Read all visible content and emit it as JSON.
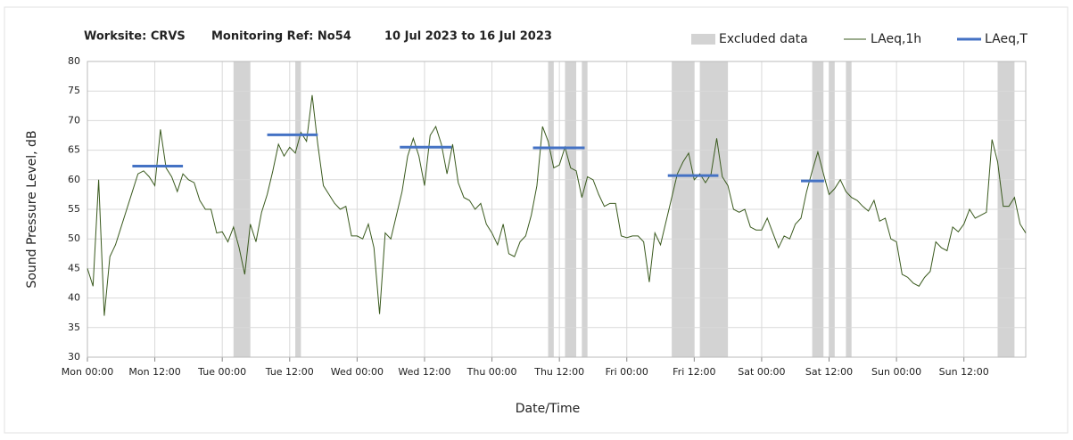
{
  "chart_data": {
    "type": "line",
    "title": [
      "Worksite: CRVS",
      "Monitoring Ref: No54",
      "10 Jul 2023 to 16 Jul 2023"
    ],
    "xlabel": "Date/Time",
    "ylabel": "Sound Pressure Level, dB",
    "xlim": [
      0,
      167
    ],
    "ylim": [
      30,
      80
    ],
    "xticks": [
      {
        "value": 0,
        "label": "Mon 00:00"
      },
      {
        "value": 12,
        "label": "Mon 12:00"
      },
      {
        "value": 24,
        "label": "Tue 00:00"
      },
      {
        "value": 36,
        "label": "Tue 12:00"
      },
      {
        "value": 48,
        "label": "Wed 00:00"
      },
      {
        "value": 60,
        "label": "Wed 12:00"
      },
      {
        "value": 72,
        "label": "Thu 00:00"
      },
      {
        "value": 84,
        "label": "Thu 12:00"
      },
      {
        "value": 96,
        "label": "Fri 00:00"
      },
      {
        "value": 108,
        "label": "Fri 12:00"
      },
      {
        "value": 120,
        "label": "Sat 00:00"
      },
      {
        "value": 132,
        "label": "Sat 12:00"
      },
      {
        "value": 144,
        "label": "Sun 00:00"
      },
      {
        "value": 156,
        "label": "Sun 12:00"
      }
    ],
    "yticks": [
      30,
      35,
      40,
      45,
      50,
      55,
      60,
      65,
      70,
      75,
      80
    ],
    "grid": true,
    "excluded": {
      "name": "Excluded data",
      "color": "#d3d3d3",
      "ranges": [
        [
          26,
          29
        ],
        [
          37,
          38
        ],
        [
          82,
          83
        ],
        [
          85,
          87
        ],
        [
          88,
          89
        ],
        [
          104,
          108
        ],
        [
          109,
          114
        ],
        [
          129,
          131
        ],
        [
          132,
          133
        ],
        [
          135,
          136
        ],
        [
          162,
          165
        ]
      ]
    },
    "periods": {
      "name": "LAeq,T",
      "color": "#4472c4",
      "ranges": [
        [
          8,
          17
        ],
        [
          32,
          41
        ],
        [
          55.6,
          64.8
        ],
        [
          79.3,
          88.5
        ],
        [
          103.3,
          112.3
        ],
        [
          127,
          131.1
        ]
      ],
      "values": [
        62.3,
        67.6,
        65.5,
        65.4,
        60.7,
        59.8
      ]
    },
    "x": [
      0,
      1,
      2,
      3,
      4,
      5,
      6,
      7,
      8,
      9,
      10,
      11,
      12,
      13,
      14,
      15,
      16,
      17,
      18,
      19,
      20,
      21,
      22,
      23,
      24,
      25,
      26,
      27,
      28,
      29,
      30,
      31,
      32,
      33,
      34,
      35,
      36,
      37,
      38,
      39,
      40,
      41,
      42,
      43,
      44,
      45,
      46,
      47,
      48,
      49,
      50,
      51,
      52,
      53,
      54,
      55,
      56,
      57,
      58,
      59,
      60,
      61,
      62,
      63,
      64,
      65,
      66,
      67,
      68,
      69,
      70,
      71,
      72,
      73,
      74,
      75,
      76,
      77,
      78,
      79,
      80,
      81,
      82,
      83,
      84,
      85,
      86,
      87,
      88,
      89,
      90,
      91,
      92,
      93,
      94,
      95,
      96,
      97,
      98,
      99,
      100,
      101,
      102,
      103,
      104,
      105,
      106,
      107,
      108,
      109,
      110,
      111,
      112,
      113,
      114,
      115,
      116,
      117,
      118,
      119,
      120,
      121,
      122,
      123,
      124,
      125,
      126,
      127,
      128,
      129,
      130,
      131,
      132,
      133,
      134,
      135,
      136,
      137,
      138,
      139,
      140,
      141,
      142,
      143,
      144,
      145,
      146,
      147,
      148,
      149,
      150,
      151,
      152,
      153,
      154,
      155,
      156,
      157,
      158,
      159,
      160,
      161,
      162,
      163,
      164,
      165,
      166,
      167
    ],
    "series": [
      {
        "name": "LAeq,1h",
        "color": "#3a5a1e",
        "values": [
          45,
          42,
          60,
          37,
          47,
          49,
          52,
          55,
          58,
          61,
          61.5,
          60.5,
          59,
          68.5,
          62,
          60.5,
          58,
          61,
          60,
          59.5,
          56.5,
          55,
          55,
          51,
          51.2,
          49.5,
          52,
          48.5,
          44,
          52.5,
          49.5,
          54.5,
          57.5,
          61.5,
          66,
          64,
          65.5,
          64.5,
          68,
          66.5,
          74.3,
          66,
          59,
          57.5,
          56,
          55,
          55.5,
          50.5,
          50.5,
          50,
          52.5,
          48.5,
          37.3,
          51,
          50,
          54,
          58,
          64,
          67,
          64,
          59,
          67.5,
          69,
          66,
          61,
          66,
          59.5,
          57,
          56.5,
          55,
          56,
          52.5,
          51,
          49,
          52.5,
          47.5,
          47,
          49.5,
          50.5,
          54,
          59,
          69,
          66.5,
          62,
          62.5,
          65.5,
          62,
          61.5,
          57,
          60.5,
          60,
          57.5,
          55.5,
          56,
          56,
          50.5,
          50.2,
          50.5,
          50.5,
          49.5,
          42.7,
          51,
          49,
          53,
          57,
          61,
          63,
          64.5,
          60,
          61,
          59.5,
          61,
          67,
          60.5,
          59,
          55,
          54.5,
          55,
          52,
          51.5,
          51.5,
          53.5,
          51,
          48.5,
          50.5,
          50,
          52.5,
          53.5,
          58,
          61.5,
          64.7,
          61,
          57.5,
          58.5,
          60,
          58,
          57,
          56.5,
          55.5,
          54.7,
          56.5,
          53,
          53.5,
          50,
          49.5,
          44,
          43.5,
          42.5,
          42,
          43.5,
          44.5,
          49.5,
          48.5,
          48,
          52,
          51.2,
          52.5,
          55,
          53.5,
          54,
          54.5,
          66.8,
          63,
          55.5,
          55.5,
          57,
          52.5,
          51
        ]
      }
    ]
  }
}
